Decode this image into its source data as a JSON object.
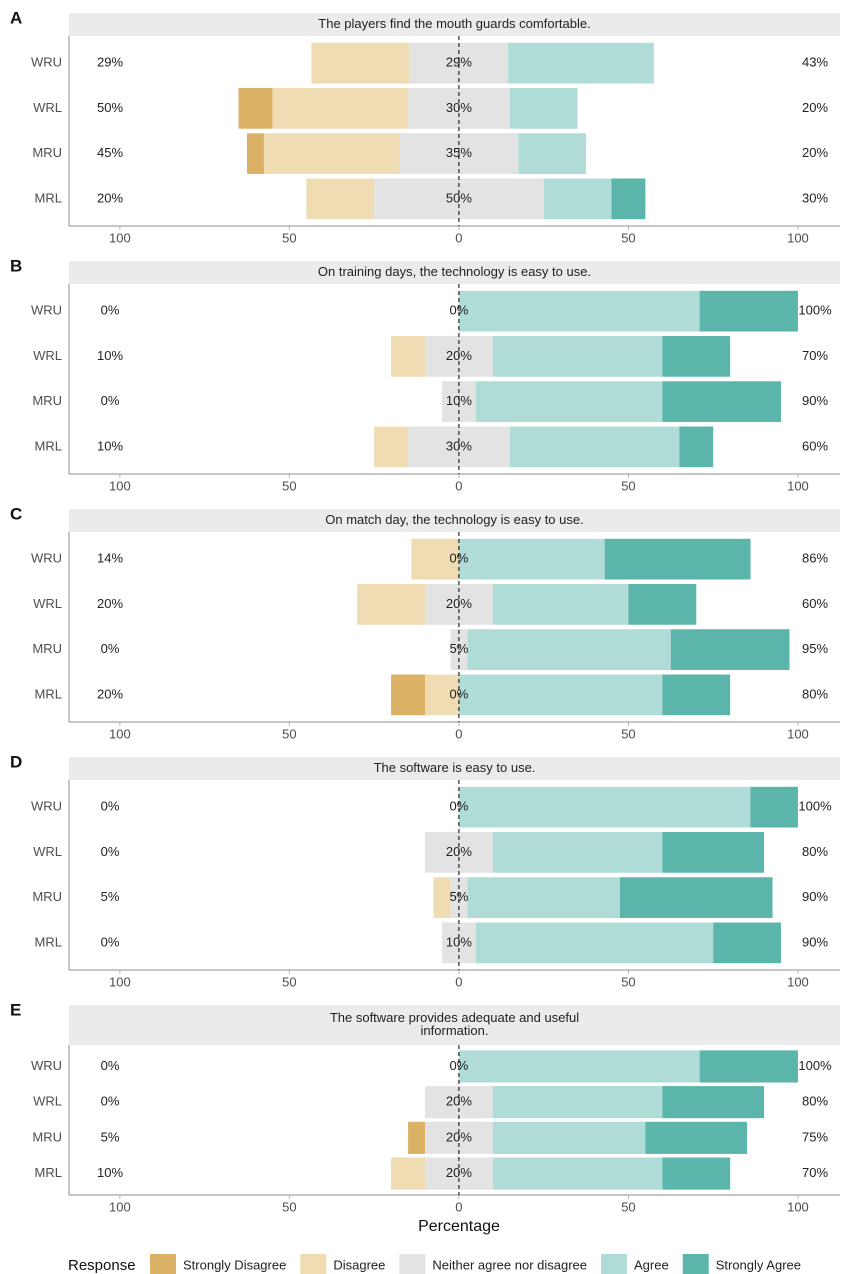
{
  "chart_data": [
    {
      "type": "bar",
      "orientation": "horizontal",
      "diverging": true,
      "panel_label": "A",
      "title": [
        "The players find the mouth guards comfortable."
      ],
      "categories": [
        "WRU",
        "WRL",
        "MRU",
        "MRL"
      ],
      "series": [
        {
          "name": "Strongly Disagree",
          "color": "#dbb166",
          "values": [
            0,
            10,
            5,
            0
          ]
        },
        {
          "name": "Disagree",
          "color": "#efdcb2",
          "values": [
            29,
            40,
            40,
            20
          ]
        },
        {
          "name": "Neither agree nor disagree",
          "color": "#e3e3e3",
          "values": [
            29,
            30,
            35,
            50
          ]
        },
        {
          "name": "Agree",
          "color": "#b0dcd7",
          "values": [
            43,
            20,
            20,
            20
          ]
        },
        {
          "name": "Strongly Agree",
          "color": "#5bb5aa",
          "values": [
            0,
            0,
            0,
            10
          ]
        }
      ],
      "left_labels": [
        "29%",
        "50%",
        "45%",
        "20%"
      ],
      "center_labels": [
        "29%",
        "30%",
        "35%",
        "50%"
      ],
      "right_labels": [
        "43%",
        "20%",
        "20%",
        "30%"
      ],
      "xlim": [
        -115,
        112.4
      ],
      "xticks": [
        {
          "value": -100,
          "label": "100"
        },
        {
          "value": -50,
          "label": "50"
        },
        0,
        50,
        100
      ]
    },
    {
      "type": "bar",
      "orientation": "horizontal",
      "diverging": true,
      "panel_label": "B",
      "title": [
        "On training days, the technology is easy to use."
      ],
      "categories": [
        "WRU",
        "WRL",
        "MRU",
        "MRL"
      ],
      "series": [
        {
          "name": "Strongly Disagree",
          "color": "#dbb166",
          "values": [
            0,
            0,
            0,
            0
          ]
        },
        {
          "name": "Disagree",
          "color": "#efdcb2",
          "values": [
            0,
            10,
            0,
            10
          ]
        },
        {
          "name": "Neither agree nor disagree",
          "color": "#e3e3e3",
          "values": [
            0,
            20,
            10,
            30
          ]
        },
        {
          "name": "Agree",
          "color": "#b0dcd7",
          "values": [
            71,
            50,
            55,
            50
          ]
        },
        {
          "name": "Strongly Agree",
          "color": "#5bb5aa",
          "values": [
            29,
            20,
            35,
            10
          ]
        }
      ],
      "left_labels": [
        "0%",
        "10%",
        "0%",
        "10%"
      ],
      "center_labels": [
        "0%",
        "20%",
        "10%",
        "30%"
      ],
      "right_labels": [
        "100%",
        "70%",
        "90%",
        "60%"
      ],
      "xlim": [
        -115,
        112.4
      ],
      "xticks": [
        {
          "value": -100,
          "label": "100"
        },
        {
          "value": -50,
          "label": "50"
        },
        0,
        50,
        100
      ]
    },
    {
      "type": "bar",
      "orientation": "horizontal",
      "diverging": true,
      "panel_label": "C",
      "title": [
        "On match day, the technology is easy to use."
      ],
      "categories": [
        "WRU",
        "WRL",
        "MRU",
        "MRL"
      ],
      "series": [
        {
          "name": "Strongly Disagree",
          "color": "#dbb166",
          "values": [
            0,
            0,
            0,
            10
          ]
        },
        {
          "name": "Disagree",
          "color": "#efdcb2",
          "values": [
            14,
            20,
            0,
            10
          ]
        },
        {
          "name": "Neither agree nor disagree",
          "color": "#e3e3e3",
          "values": [
            0,
            20,
            5,
            0
          ]
        },
        {
          "name": "Agree",
          "color": "#b0dcd7",
          "values": [
            43,
            40,
            60,
            60
          ]
        },
        {
          "name": "Strongly Agree",
          "color": "#5bb5aa",
          "values": [
            43,
            20,
            35,
            20
          ]
        }
      ],
      "left_labels": [
        "14%",
        "20%",
        "0%",
        "20%"
      ],
      "center_labels": [
        "0%",
        "20%",
        "5%",
        "0%"
      ],
      "right_labels": [
        "86%",
        "60%",
        "95%",
        "80%"
      ],
      "xlim": [
        -115,
        112.4
      ],
      "xticks": [
        {
          "value": -100,
          "label": "100"
        },
        {
          "value": -50,
          "label": "50"
        },
        0,
        50,
        100
      ]
    },
    {
      "type": "bar",
      "orientation": "horizontal",
      "diverging": true,
      "panel_label": "D",
      "title": [
        "The software is easy to use."
      ],
      "categories": [
        "WRU",
        "WRL",
        "MRU",
        "MRL"
      ],
      "series": [
        {
          "name": "Strongly Disagree",
          "color": "#dbb166",
          "values": [
            0,
            0,
            0,
            0
          ]
        },
        {
          "name": "Disagree",
          "color": "#efdcb2",
          "values": [
            0,
            0,
            5,
            0
          ]
        },
        {
          "name": "Neither agree nor disagree",
          "color": "#e3e3e3",
          "values": [
            0,
            20,
            5,
            10
          ]
        },
        {
          "name": "Agree",
          "color": "#b0dcd7",
          "values": [
            86,
            50,
            45,
            70
          ]
        },
        {
          "name": "Strongly Agree",
          "color": "#5bb5aa",
          "values": [
            14,
            30,
            45,
            20
          ]
        }
      ],
      "left_labels": [
        "0%",
        "0%",
        "5%",
        "0%"
      ],
      "center_labels": [
        "0%",
        "20%",
        "5%",
        "10%"
      ],
      "right_labels": [
        "100%",
        "80%",
        "90%",
        "90%"
      ],
      "xlim": [
        -115,
        112.4
      ],
      "xticks": [
        {
          "value": -100,
          "label": "100"
        },
        {
          "value": -50,
          "label": "50"
        },
        0,
        50,
        100
      ]
    },
    {
      "type": "bar",
      "orientation": "horizontal",
      "diverging": true,
      "panel_label": "E",
      "title": [
        "The software provides adequate and useful",
        "information."
      ],
      "categories": [
        "WRU",
        "WRL",
        "MRU",
        "MRL"
      ],
      "series": [
        {
          "name": "Strongly Disagree",
          "color": "#dbb166",
          "values": [
            0,
            0,
            5,
            0
          ]
        },
        {
          "name": "Disagree",
          "color": "#efdcb2",
          "values": [
            0,
            0,
            0,
            10
          ]
        },
        {
          "name": "Neither agree nor disagree",
          "color": "#e3e3e3",
          "values": [
            0,
            20,
            20,
            20
          ]
        },
        {
          "name": "Agree",
          "color": "#b0dcd7",
          "values": [
            71,
            50,
            45,
            50
          ]
        },
        {
          "name": "Strongly Agree",
          "color": "#5bb5aa",
          "values": [
            29,
            30,
            30,
            20
          ]
        }
      ],
      "left_labels": [
        "0%",
        "0%",
        "5%",
        "10%"
      ],
      "center_labels": [
        "0%",
        "20%",
        "20%",
        "20%"
      ],
      "right_labels": [
        "100%",
        "80%",
        "75%",
        "70%"
      ],
      "xlim": [
        -115,
        112.4
      ],
      "xticks": [
        {
          "value": -100,
          "label": "100"
        },
        {
          "value": -50,
          "label": "50"
        },
        0,
        50,
        100
      ]
    }
  ],
  "xlabel": "Percentage",
  "legend": {
    "title": "Response",
    "position": "bottom"
  }
}
